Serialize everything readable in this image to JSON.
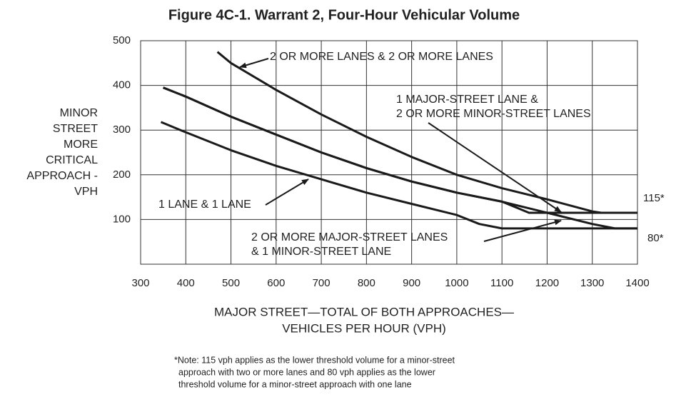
{
  "chart_data": {
    "type": "line",
    "title": "Figure 4C-1.  Warrant 2, Four-Hour Vehicular Volume",
    "y_label": [
      "MINOR",
      "STREET",
      "MORE",
      "CRITICAL",
      "APPROACH -",
      "VPH"
    ],
    "x_label": [
      "MAJOR STREET—TOTAL OF BOTH APPROACHES—",
      "VEHICLES PER HOUR (VPH)"
    ],
    "xlim": [
      300,
      1400
    ],
    "ylim": [
      0,
      500
    ],
    "xticks": [
      300,
      400,
      500,
      600,
      700,
      800,
      900,
      1000,
      1100,
      1200,
      1300,
      1400
    ],
    "yticks": [
      100,
      200,
      300,
      400,
      500
    ],
    "grid": true,
    "series": [
      {
        "name": [
          "2 OR MORE LANES & 2 OR MORE LANES"
        ],
        "color": "#1a1a1a",
        "x": [
          470,
          500,
          600,
          700,
          800,
          900,
          1000,
          1100,
          1200,
          1300,
          1320,
          1400
        ],
        "values": [
          475,
          450,
          390,
          335,
          285,
          240,
          200,
          170,
          145,
          118,
          115,
          115
        ]
      },
      {
        "name": [
          "1 MAJOR-STREET LANE &",
          "2 OR MORE MINOR-STREET LANES"
        ],
        "color": "#1a1a1a",
        "x": [
          350,
          400,
          500,
          600,
          700,
          800,
          900,
          1000,
          1100,
          1160,
          1400
        ],
        "values": [
          395,
          375,
          330,
          290,
          250,
          215,
          185,
          160,
          140,
          115,
          115
        ]
      },
      {
        "name": [
          "2 OR MORE MAJOR-STREET LANES",
          "& 1 MINOR-STREET LANE"
        ],
        "color": "#1a1a1a",
        "x": [
          350,
          400,
          500,
          600,
          700,
          800,
          900,
          1000,
          1100,
          1200,
          1300,
          1350,
          1400
        ],
        "values": [
          395,
          375,
          330,
          290,
          250,
          215,
          185,
          160,
          140,
          115,
          90,
          80,
          80
        ]
      },
      {
        "name": [
          "1 LANE & 1 LANE"
        ],
        "color": "#1a1a1a",
        "x": [
          345,
          400,
          500,
          600,
          700,
          800,
          900,
          1000,
          1050,
          1100,
          1400
        ],
        "values": [
          318,
          295,
          255,
          220,
          190,
          160,
          135,
          110,
          90,
          80,
          80
        ]
      }
    ],
    "end_labels": [
      {
        "text": "115*",
        "y": 115
      },
      {
        "text": "80*",
        "y": 80
      }
    ],
    "note": [
      "*Note: 115 vph applies as the lower threshold volume for a minor-street",
      "approach with two or more lanes and 80 vph applies as the lower",
      "threshold volume for a minor-street approach with one lane"
    ]
  }
}
